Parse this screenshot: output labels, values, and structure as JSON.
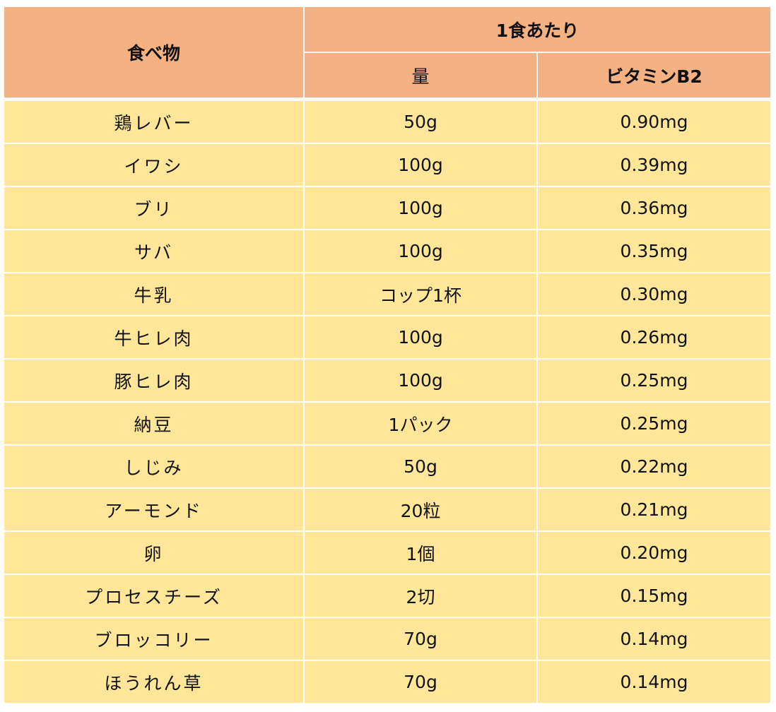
{
  "table": {
    "headers": {
      "food": "食べ物",
      "per_serving": "1食あたり",
      "amount": "量",
      "vitamin": "ビタミンB2"
    },
    "colors": {
      "header_bg": "#f4b183",
      "row_bg": "#ffe699",
      "grid": "#ffffff"
    },
    "rows": [
      {
        "food": "鶏レバー",
        "amount": "50g",
        "vitamin": "0.90mg"
      },
      {
        "food": "イワシ",
        "amount": "100g",
        "vitamin": "0.39mg"
      },
      {
        "food": "ブリ",
        "amount": "100g",
        "vitamin": "0.36mg"
      },
      {
        "food": "サバ",
        "amount": "100g",
        "vitamin": "0.35mg"
      },
      {
        "food": "牛乳",
        "amount": "コップ1杯",
        "vitamin": "0.30mg"
      },
      {
        "food": "牛ヒレ肉",
        "amount": "100g",
        "vitamin": "0.26mg"
      },
      {
        "food": "豚ヒレ肉",
        "amount": "100g",
        "vitamin": "0.25mg"
      },
      {
        "food": "納豆",
        "amount": "1パック",
        "vitamin": "0.25mg"
      },
      {
        "food": "しじみ",
        "amount": "50g",
        "vitamin": "0.22mg"
      },
      {
        "food": "アーモンド",
        "amount": "20粒",
        "vitamin": "0.21mg"
      },
      {
        "food": "卵",
        "amount": "1個",
        "vitamin": "0.20mg"
      },
      {
        "food": "プロセスチーズ",
        "amount": "2切",
        "vitamin": "0.15mg"
      },
      {
        "food": "ブロッコリー",
        "amount": "70g",
        "vitamin": "0.14mg"
      },
      {
        "food": "ほうれん草",
        "amount": "70g",
        "vitamin": "0.14mg"
      }
    ]
  }
}
